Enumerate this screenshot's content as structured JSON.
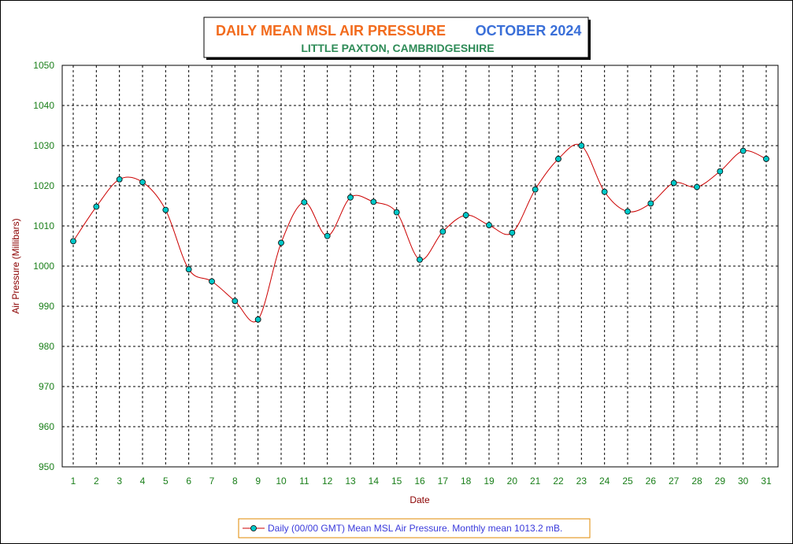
{
  "chart_data": {
    "type": "line",
    "title": "DAILY MEAN MSL AIR PRESSURE",
    "title_month": "OCTOBER 2024",
    "subtitle": "LITTLE PAXTON, CAMBRIDGESHIRE",
    "xlabel": "Date",
    "ylabel": "Air Pressure (Millibars)",
    "ylim": [
      950,
      1050
    ],
    "yticks": [
      950,
      960,
      970,
      980,
      990,
      1000,
      1010,
      1020,
      1030,
      1040,
      1050
    ],
    "x": [
      1,
      2,
      3,
      4,
      5,
      6,
      7,
      8,
      9,
      10,
      11,
      12,
      13,
      14,
      15,
      16,
      17,
      18,
      19,
      20,
      21,
      22,
      23,
      24,
      25,
      26,
      27,
      28,
      29,
      30,
      31
    ],
    "series": [
      {
        "name": "Daily (00/00 GMT) Mean MSL Air Pressure. Monthly mean 1013.2 mB.",
        "values": [
          1006.2,
          1014.8,
          1021.6,
          1020.9,
          1014.0,
          999.2,
          996.2,
          991.3,
          986.7,
          1005.8,
          1015.9,
          1007.5,
          1017.1,
          1016.0,
          1013.4,
          1001.6,
          1008.6,
          1012.7,
          1010.2,
          1008.3,
          1019.1,
          1026.7,
          1030.0,
          1018.5,
          1013.6,
          1015.6,
          1020.7,
          1019.7,
          1023.6,
          1028.7,
          1026.7
        ]
      }
    ],
    "grid": true,
    "legend_position": "bottom-center",
    "colors": {
      "line": "#cc0000",
      "marker_fill": "#00c8c8",
      "marker_stroke": "#000000",
      "grid": "#000000",
      "tick_text": "#1a7f1a",
      "axis_label": "#8b0000",
      "title": "#f26b1d",
      "title_month": "#3a6fd8",
      "subtitle": "#2e8b57",
      "legend_text": "#3a3adb",
      "legend_border": "#e08a00"
    }
  }
}
